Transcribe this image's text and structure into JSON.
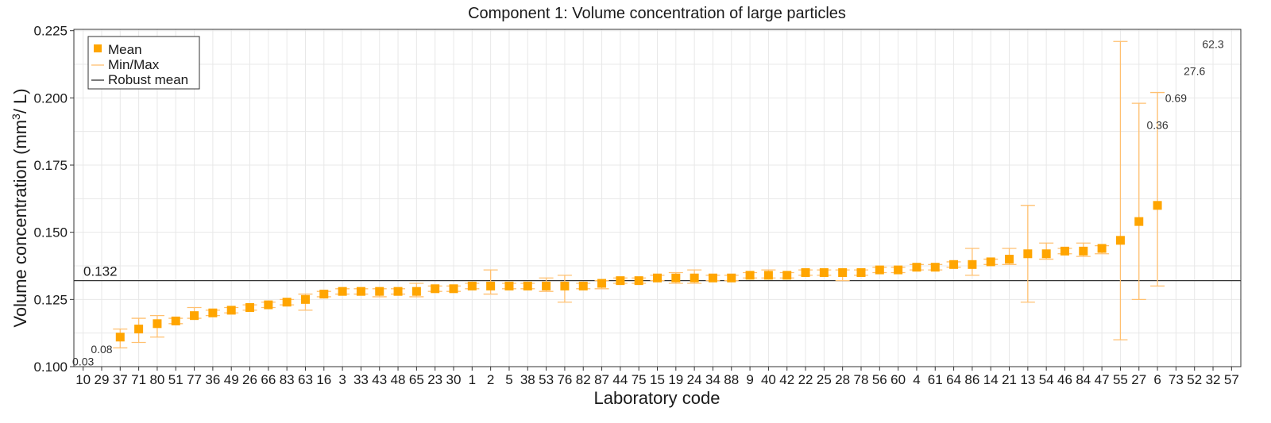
{
  "chart_data": {
    "type": "scatter",
    "title": "Component 1: Volume concentration of large particles",
    "xlabel": "Laboratory code",
    "ylabel_main": "Volume concentration (mm",
    "ylabel_sup": "3",
    "ylabel_tail": "/ L)",
    "ylim": [
      0.1,
      0.2255
    ],
    "yticks": [
      0.1,
      0.125,
      0.15,
      0.175,
      0.2,
      0.225
    ],
    "ytick_labels": [
      "0.100",
      "0.125",
      "0.150",
      "0.175",
      "0.200",
      "0.225"
    ],
    "grid": true,
    "legend_placement": "top-left",
    "legend": [
      {
        "name": "Mean",
        "symbol": "square"
      },
      {
        "name": "Min/Max",
        "symbol": "line"
      },
      {
        "name": "Robust mean",
        "symbol": "line"
      }
    ],
    "robust_mean": {
      "value": 0.132,
      "label": "0.132"
    },
    "categories": [
      "10",
      "29",
      "37",
      "71",
      "80",
      "51",
      "77",
      "36",
      "49",
      "26",
      "66",
      "83",
      "63",
      "16",
      "3",
      "33",
      "43",
      "48",
      "65",
      "23",
      "30",
      "1",
      "2",
      "5",
      "38",
      "53",
      "76",
      "82",
      "87",
      "44",
      "75",
      "15",
      "19",
      "24",
      "34",
      "88",
      "9",
      "40",
      "42",
      "22",
      "25",
      "28",
      "78",
      "56",
      "60",
      "4",
      "61",
      "64",
      "86",
      "14",
      "21",
      "13",
      "54",
      "46",
      "84",
      "47",
      "55",
      "27",
      "6",
      "73",
      "52",
      "32",
      "57"
    ],
    "mean": [
      null,
      null,
      0.111,
      0.114,
      0.116,
      0.117,
      0.119,
      0.12,
      0.121,
      0.122,
      0.123,
      0.124,
      0.125,
      0.127,
      0.128,
      0.128,
      0.128,
      0.128,
      0.128,
      0.129,
      0.129,
      0.13,
      0.13,
      0.13,
      0.13,
      0.13,
      0.13,
      0.13,
      0.131,
      0.132,
      0.132,
      0.133,
      0.133,
      0.133,
      0.133,
      0.133,
      0.134,
      0.134,
      0.134,
      0.135,
      0.135,
      0.135,
      0.135,
      0.136,
      0.136,
      0.137,
      0.137,
      0.138,
      0.138,
      0.139,
      0.14,
      0.142,
      0.142,
      0.143,
      0.143,
      0.144,
      0.147,
      0.154,
      0.16,
      null,
      null,
      null,
      null
    ],
    "min": [
      null,
      null,
      0.107,
      0.109,
      0.111,
      0.116,
      0.118,
      0.119,
      0.12,
      0.121,
      0.122,
      0.123,
      0.121,
      0.126,
      0.127,
      0.127,
      0.126,
      0.127,
      0.126,
      0.128,
      0.128,
      0.129,
      0.127,
      0.129,
      0.129,
      0.128,
      0.124,
      0.129,
      0.129,
      0.131,
      0.131,
      0.132,
      0.131,
      0.131,
      0.132,
      0.132,
      0.133,
      0.133,
      0.133,
      0.134,
      0.134,
      0.132,
      0.134,
      0.135,
      0.135,
      0.136,
      0.136,
      0.137,
      0.134,
      0.138,
      0.138,
      0.124,
      0.14,
      0.142,
      0.141,
      0.142,
      0.11,
      0.125,
      0.13,
      null,
      null,
      null,
      null
    ],
    "max": [
      null,
      null,
      0.114,
      0.118,
      0.119,
      0.118,
      0.122,
      0.121,
      0.122,
      0.123,
      0.124,
      0.125,
      0.127,
      0.128,
      0.129,
      0.129,
      0.129,
      0.129,
      0.131,
      0.13,
      0.13,
      0.131,
      0.136,
      0.131,
      0.131,
      0.133,
      0.134,
      0.131,
      0.132,
      0.133,
      0.133,
      0.134,
      0.135,
      0.136,
      0.134,
      0.134,
      0.135,
      0.136,
      0.135,
      0.136,
      0.136,
      0.136,
      0.136,
      0.137,
      0.137,
      0.138,
      0.138,
      0.139,
      0.144,
      0.14,
      0.144,
      0.16,
      0.146,
      0.144,
      0.146,
      0.145,
      0.221,
      0.198,
      0.202,
      null,
      null,
      null,
      null
    ],
    "outlier_labels": [
      {
        "category": "10",
        "text": "0.03",
        "y": 0.1005
      },
      {
        "category": "29",
        "text": "0.08",
        "y": 0.105
      },
      {
        "category": "6",
        "text": "0.36",
        "y": 0.1885
      },
      {
        "category": "73",
        "text": "0.69",
        "y": 0.1985
      },
      {
        "category": "52",
        "text": "27.6",
        "y": 0.2085
      },
      {
        "category": "32",
        "text": "62.3",
        "y": 0.2185
      }
    ],
    "colors": {
      "mean": "#FFA500",
      "minmax": "#FFC070",
      "robust_mean": "#333333",
      "grid": "#e8e8e8",
      "frame": "#333333"
    }
  }
}
